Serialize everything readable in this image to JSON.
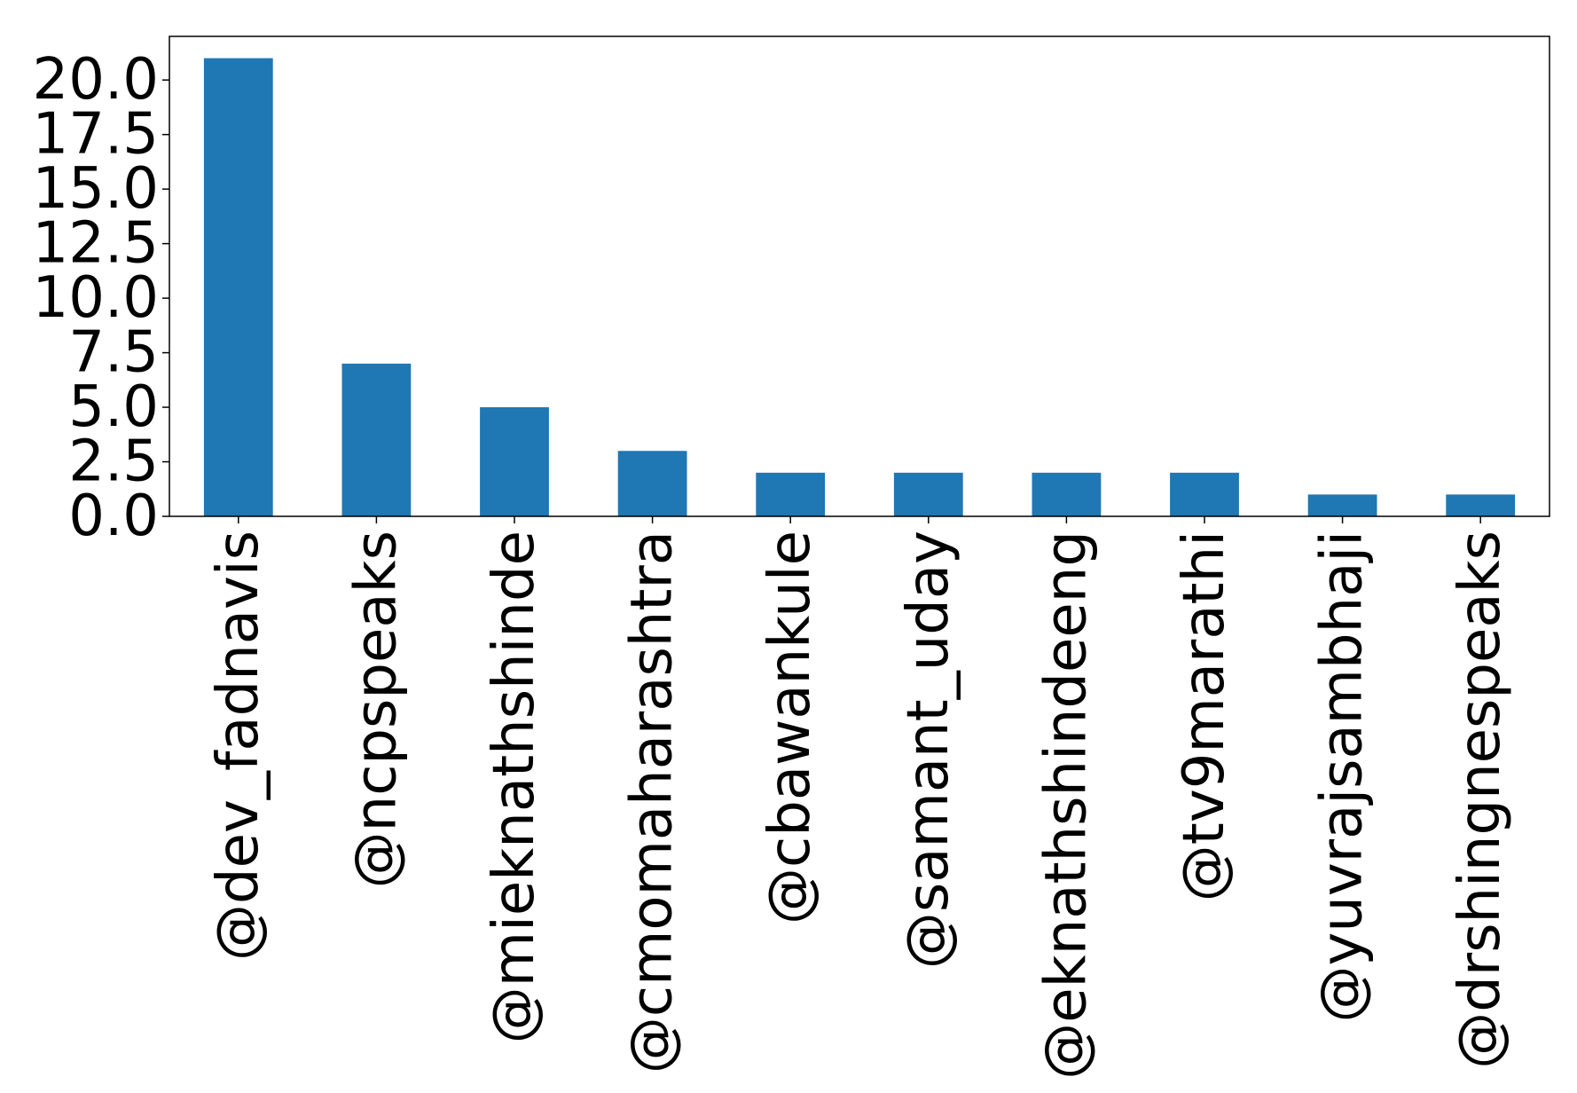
{
  "chart_data": {
    "type": "bar",
    "categories": [
      "@dev_fadnavis",
      "@ncpspeaks",
      "@mieknathshinde",
      "@cmomaharashtra",
      "@cbawankule",
      "@samant_uday",
      "@eknathshindeeng",
      "@tv9marathi",
      "@yuvrajsambhaji",
      "@drshingnespeaks"
    ],
    "values": [
      21,
      7,
      5,
      3,
      2,
      2,
      2,
      2,
      1,
      1
    ],
    "ylim": [
      0,
      22
    ],
    "yticks": [
      0.0,
      2.5,
      5.0,
      7.5,
      10.0,
      12.5,
      15.0,
      17.5,
      20.0
    ],
    "ytick_labels": [
      "0.0",
      "2.5",
      "5.0",
      "7.5",
      "10.0",
      "12.5",
      "15.0",
      "17.5",
      "20.0"
    ],
    "bar_color": "#1f77b4",
    "grid": false,
    "title": "",
    "xlabel": "",
    "ylabel": ""
  }
}
